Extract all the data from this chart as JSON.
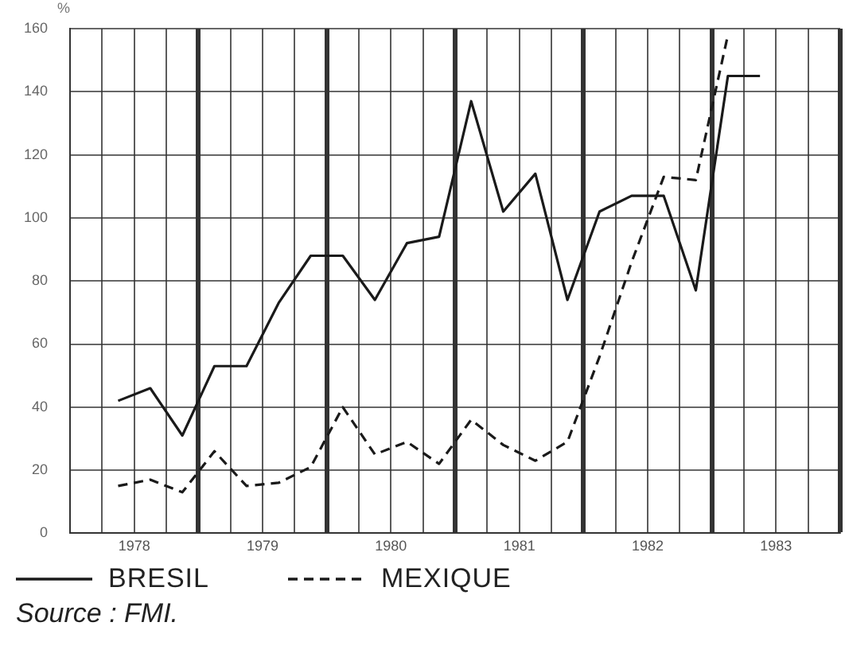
{
  "chart_data": {
    "type": "line",
    "ylabel": "%",
    "annotations": [
      "Source : FMI."
    ],
    "x": [
      1978.375,
      1978.625,
      1978.875,
      1979.125,
      1979.375,
      1979.625,
      1979.875,
      1980.125,
      1980.375,
      1980.625,
      1980.875,
      1981.125,
      1981.375,
      1981.625,
      1981.875,
      1982.125,
      1982.375,
      1982.625,
      1982.875,
      1983.125,
      1983.375
    ],
    "series": [
      {
        "name": "BRESIL",
        "color": "#1a1a1a",
        "line_style": "solid",
        "values": [
          42,
          46,
          31,
          53,
          53,
          73,
          88,
          88,
          74,
          92,
          94,
          137,
          102,
          114,
          74,
          102,
          107,
          107,
          77,
          145,
          145
        ]
      },
      {
        "name": "MEXIQUE",
        "color": "#1a1a1a",
        "line_style": "dashed",
        "values": [
          15,
          17,
          13,
          26,
          15,
          16,
          21,
          40,
          25,
          29,
          22,
          36,
          28,
          23,
          29,
          56,
          86,
          113,
          112,
          158,
          null
        ]
      }
    ],
    "xlim": [
      1978,
      1984
    ],
    "xticks": [
      {
        "value": 1978,
        "label": null
      },
      {
        "value": 1978.25,
        "label": null
      },
      {
        "value": 1978.5,
        "label": "1978"
      },
      {
        "value": 1978.75,
        "label": null
      },
      {
        "value": 1979,
        "label": null
      },
      {
        "value": 1979.25,
        "label": null
      },
      {
        "value": 1979.5,
        "label": "1979"
      },
      {
        "value": 1979.75,
        "label": null
      },
      {
        "value": 1980,
        "label": null
      },
      {
        "value": 1980.25,
        "label": null
      },
      {
        "value": 1980.5,
        "label": "1980"
      },
      {
        "value": 1980.75,
        "label": null
      },
      {
        "value": 1981,
        "label": null
      },
      {
        "value": 1981.25,
        "label": null
      },
      {
        "value": 1981.5,
        "label": "1981"
      },
      {
        "value": 1981.75,
        "label": null
      },
      {
        "value": 1982,
        "label": null
      },
      {
        "value": 1982.25,
        "label": null
      },
      {
        "value": 1982.5,
        "label": "1982"
      },
      {
        "value": 1982.75,
        "label": null
      },
      {
        "value": 1983,
        "label": null
      },
      {
        "value": 1983.25,
        "label": null
      },
      {
        "value": 1983.5,
        "label": "1983"
      },
      {
        "value": 1983.75,
        "label": null
      },
      {
        "value": 1984,
        "label": null
      }
    ],
    "ylim": [
      0,
      160
    ],
    "yticks": [
      0,
      20,
      40,
      60,
      80,
      100,
      120,
      140,
      160
    ],
    "grid": true,
    "legend": "bottom",
    "marker": "none"
  }
}
